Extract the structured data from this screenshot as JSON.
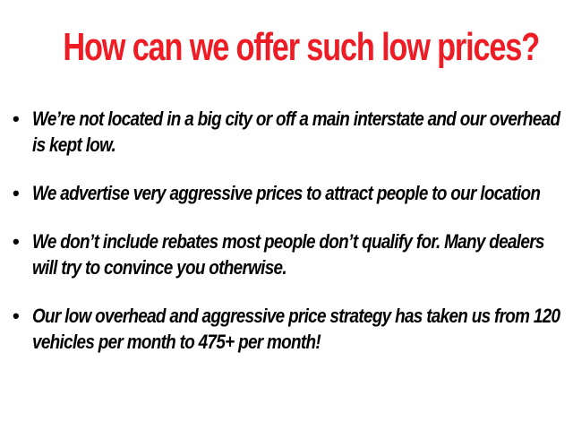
{
  "title": "How can we offer such low prices?",
  "bullets": [
    "We’re not located in a big city or off a main interstate and our overhead is kept low.",
    "We advertise very aggressive prices to attract people to our location",
    "We don’t include rebates most people don’t qualify for. Many dealers will try to convince you otherwise.",
    "Our low overhead and aggressive price strategy has taken us from 120 vehicles per month to 475+ per month!"
  ],
  "colors": {
    "title": "#ee1c24",
    "text": "#000000"
  }
}
